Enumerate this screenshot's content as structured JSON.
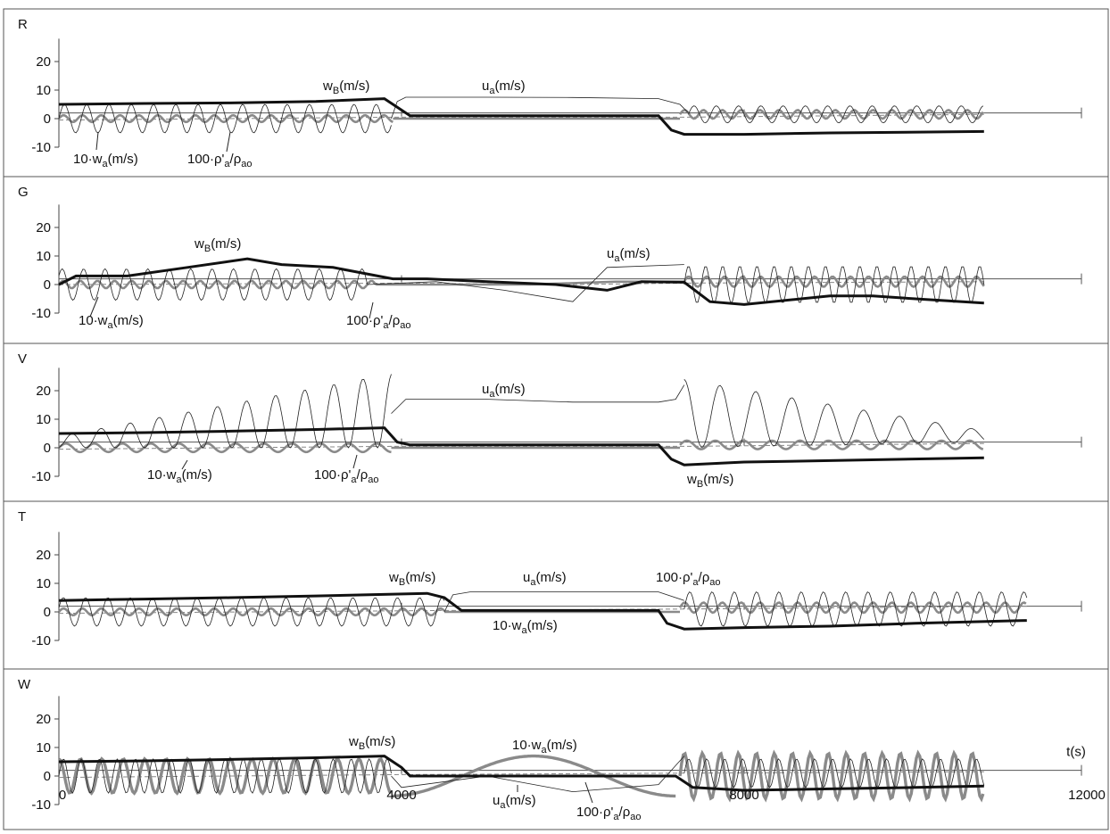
{
  "chart_data": [
    {
      "type": "line",
      "panel_label": "R",
      "y_ticks": [
        20,
        10,
        0,
        -10
      ],
      "ylim": [
        -10,
        25
      ],
      "xlim": [
        0,
        12000
      ],
      "grid": false,
      "labels": [
        {
          "text": "w",
          "sub": "B",
          "unit": "(m/s)"
        },
        {
          "text": "u",
          "sub": "a",
          "unit": "(m/s)"
        },
        {
          "text": "10·w",
          "sub": "a",
          "unit": "(m/s)"
        },
        {
          "text": "100·ρ'",
          "sub": "a",
          "unit": "/ρ",
          "sub2": "ao"
        }
      ],
      "series": [
        {
          "role": "wB",
          "width": 3.2,
          "color": "#111111",
          "points": [
            [
              0,
              5
            ],
            [
              1000,
              5.3
            ],
            [
              2000,
              5.6
            ],
            [
              3000,
              6
            ],
            [
              3800,
              6.5
            ],
            [
              4000,
              2
            ],
            [
              4300,
              1
            ],
            [
              7000,
              1
            ],
            [
              7400,
              -5
            ],
            [
              8000,
              -5.5
            ],
            [
              9000,
              -5
            ],
            [
              10000,
              -4.8
            ],
            [
              10800,
              -4.5
            ]
          ]
        },
        {
          "role": "ua",
          "width": 0.8,
          "color": "#111111",
          "env": [
            [
              0,
              0,
              5
            ],
            [
              3900,
              0,
              6
            ]
          ],
          "period": 250,
          "flat": [
            [
              3900,
              4
            ],
            [
              4000,
              7
            ],
            [
              5000,
              7.3
            ],
            [
              6000,
              7
            ],
            [
              7000,
              6.5
            ],
            [
              7400,
              3
            ]
          ],
          "env2": [
            [
              7400,
              1,
              4
            ],
            [
              10800,
              1,
              2
            ]
          ],
          "period2": 250
        }
      ]
    },
    {
      "type": "line",
      "panel_label": "G",
      "y_ticks": [
        20,
        10,
        0,
        -10
      ],
      "ylim": [
        -10,
        25
      ],
      "xlim": [
        0,
        12000
      ],
      "grid": false,
      "labels": [
        {
          "text": "w",
          "sub": "B",
          "unit": "(m/s)"
        },
        {
          "text": "u",
          "sub": "a",
          "unit": "(m/s)"
        },
        {
          "text": "10·w",
          "sub": "a",
          "unit": "(m/s)"
        },
        {
          "text": "100·ρ'",
          "sub": "a",
          "unit": "/ρ",
          "sub2": "ao"
        }
      ]
    },
    {
      "type": "line",
      "panel_label": "V",
      "y_ticks": [
        20,
        10,
        0,
        -10
      ],
      "ylim": [
        -10,
        25
      ],
      "xlim": [
        0,
        12000
      ],
      "grid": false,
      "labels": [
        {
          "text": "u",
          "sub": "a",
          "unit": "(m/s)"
        },
        {
          "text": "10·w",
          "sub": "a",
          "unit": "(m/s)"
        },
        {
          "text": "100·ρ'",
          "sub": "a",
          "unit": "/ρ",
          "sub2": "ao"
        },
        {
          "text": "w",
          "sub": "B",
          "unit": "(m/s)"
        }
      ]
    },
    {
      "type": "line",
      "panel_label": "T",
      "y_ticks": [
        20,
        10,
        0,
        -10
      ],
      "ylim": [
        -10,
        25
      ],
      "xlim": [
        0,
        12000
      ],
      "grid": false,
      "labels": [
        {
          "text": "w",
          "sub": "B",
          "unit": "(m/s)"
        },
        {
          "text": "u",
          "sub": "a",
          "unit": "(m/s)"
        },
        {
          "text": "100·ρ'",
          "sub": "a",
          "unit": "/ρ",
          "sub2": "ao"
        },
        {
          "text": "10·w",
          "sub": "a",
          "unit": "(m/s)"
        }
      ]
    },
    {
      "type": "line",
      "panel_label": "W",
      "y_ticks": [
        20,
        10,
        0,
        -10
      ],
      "x_ticks": [
        0,
        4000,
        8000,
        12000
      ],
      "x_unit": "t(s)",
      "ylim": [
        -10,
        25
      ],
      "xlim": [
        0,
        12000
      ],
      "grid": false,
      "labels": [
        {
          "text": "w",
          "sub": "B",
          "unit": "(m/s)"
        },
        {
          "text": "10·w",
          "sub": "a",
          "unit": "(m/s)"
        },
        {
          "text": "u",
          "sub": "a",
          "unit": "(m/s)"
        },
        {
          "text": "100·ρ'",
          "sub": "a",
          "unit": "/ρ",
          "sub2": "ao"
        }
      ]
    }
  ]
}
